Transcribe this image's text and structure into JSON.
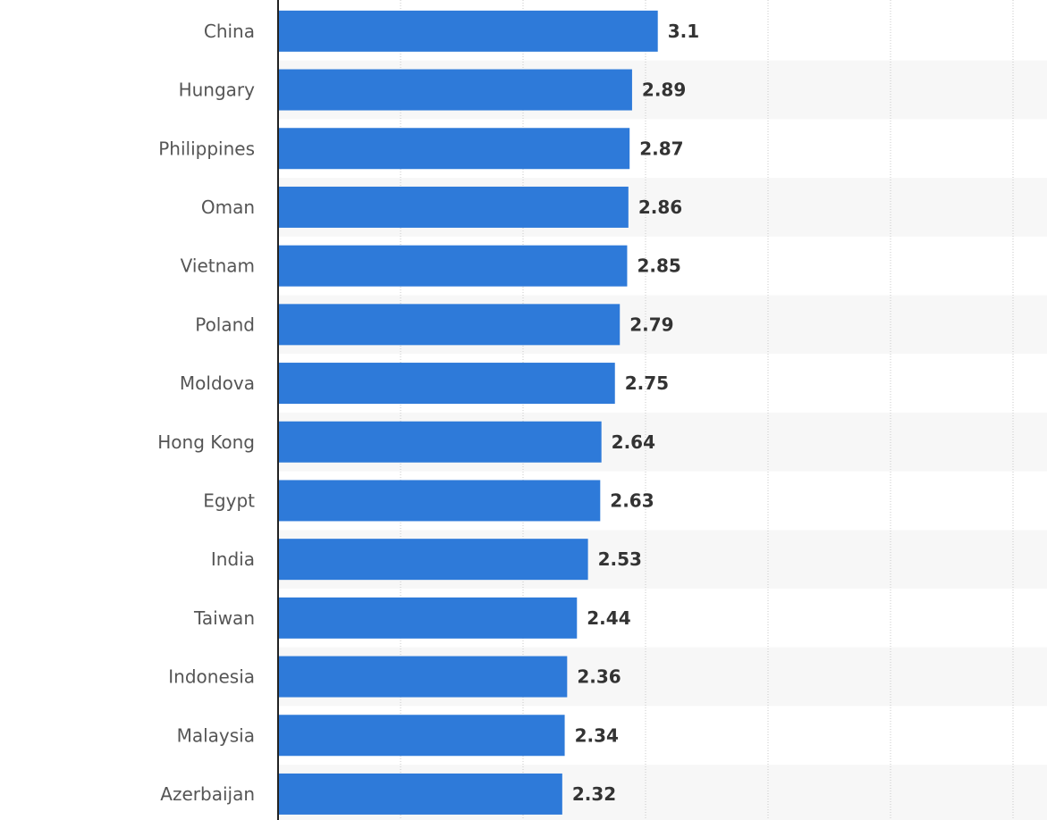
{
  "chart_data": {
    "type": "bar",
    "orientation": "horizontal",
    "categories": [
      "China",
      "Hungary",
      "Philippines",
      "Oman",
      "Vietnam",
      "Poland",
      "Moldova",
      "Hong Kong",
      "Egypt",
      "India",
      "Taiwan",
      "Indonesia",
      "Malaysia",
      "Azerbaijan"
    ],
    "values": [
      3.1,
      2.89,
      2.87,
      2.86,
      2.85,
      2.79,
      2.75,
      2.64,
      2.63,
      2.53,
      2.44,
      2.36,
      2.34,
      2.32
    ],
    "value_labels": [
      "3.1",
      "2.89",
      "2.87",
      "2.86",
      "2.85",
      "2.79",
      "2.75",
      "2.64",
      "2.63",
      "2.53",
      "2.44",
      "2.36",
      "2.34",
      "2.32"
    ],
    "xlim": [
      0,
      6
    ],
    "grid": true,
    "legend": "none",
    "bar_color": "#2e7ad9",
    "stripe_color": "#f7f7f7",
    "grid_color": "#c8c8c8"
  }
}
